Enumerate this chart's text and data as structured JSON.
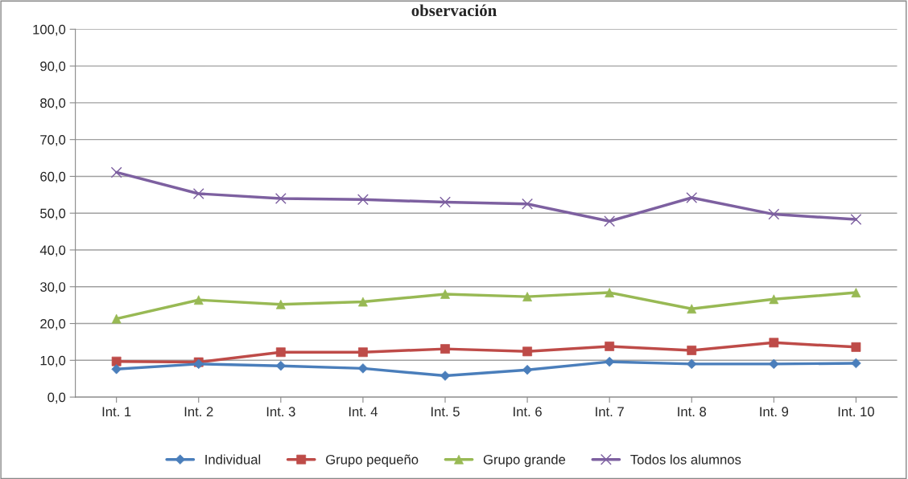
{
  "chart_data": {
    "type": "line",
    "title": "observación",
    "categories": [
      "Int. 1",
      "Int. 2",
      "Int. 3",
      "Int. 4",
      "Int. 5",
      "Int. 6",
      "Int. 7",
      "Int. 8",
      "Int. 9",
      "Int. 10"
    ],
    "series": [
      {
        "name": "Individual",
        "color": "#4a7ebb",
        "marker": "diamond",
        "values": [
          7.6,
          9.0,
          8.5,
          7.8,
          5.8,
          7.4,
          9.6,
          9.0,
          9.0,
          9.2
        ]
      },
      {
        "name": "Grupo pequeño",
        "color": "#be4b48",
        "marker": "square",
        "values": [
          9.7,
          9.5,
          12.2,
          12.2,
          13.1,
          12.4,
          13.8,
          12.7,
          14.8,
          13.6
        ]
      },
      {
        "name": "Grupo grande",
        "color": "#98b954",
        "marker": "triangle",
        "values": [
          21.3,
          26.4,
          25.2,
          25.9,
          28.0,
          27.3,
          28.4,
          24.0,
          26.6,
          28.4
        ]
      },
      {
        "name": "Todos los alumnos",
        "color": "#7d60a0",
        "marker": "cross",
        "values": [
          61.1,
          55.3,
          54.0,
          53.7,
          53.0,
          52.5,
          47.8,
          54.2,
          49.7,
          48.3
        ]
      }
    ],
    "ylim": [
      0,
      100
    ],
    "yticks": [
      {
        "value": 0,
        "label": "0,0"
      },
      {
        "value": 10,
        "label": "10,0"
      },
      {
        "value": 20,
        "label": "20,0"
      },
      {
        "value": 30,
        "label": "30,0"
      },
      {
        "value": 40,
        "label": "40,0"
      },
      {
        "value": 50,
        "label": "50,0"
      },
      {
        "value": 60,
        "label": "60,0"
      },
      {
        "value": 70,
        "label": "70,0"
      },
      {
        "value": 80,
        "label": "80,0"
      },
      {
        "value": 90,
        "label": "90,0"
      },
      {
        "value": 100,
        "label": "100,0"
      }
    ],
    "grid": "y",
    "legend": "bottom"
  }
}
